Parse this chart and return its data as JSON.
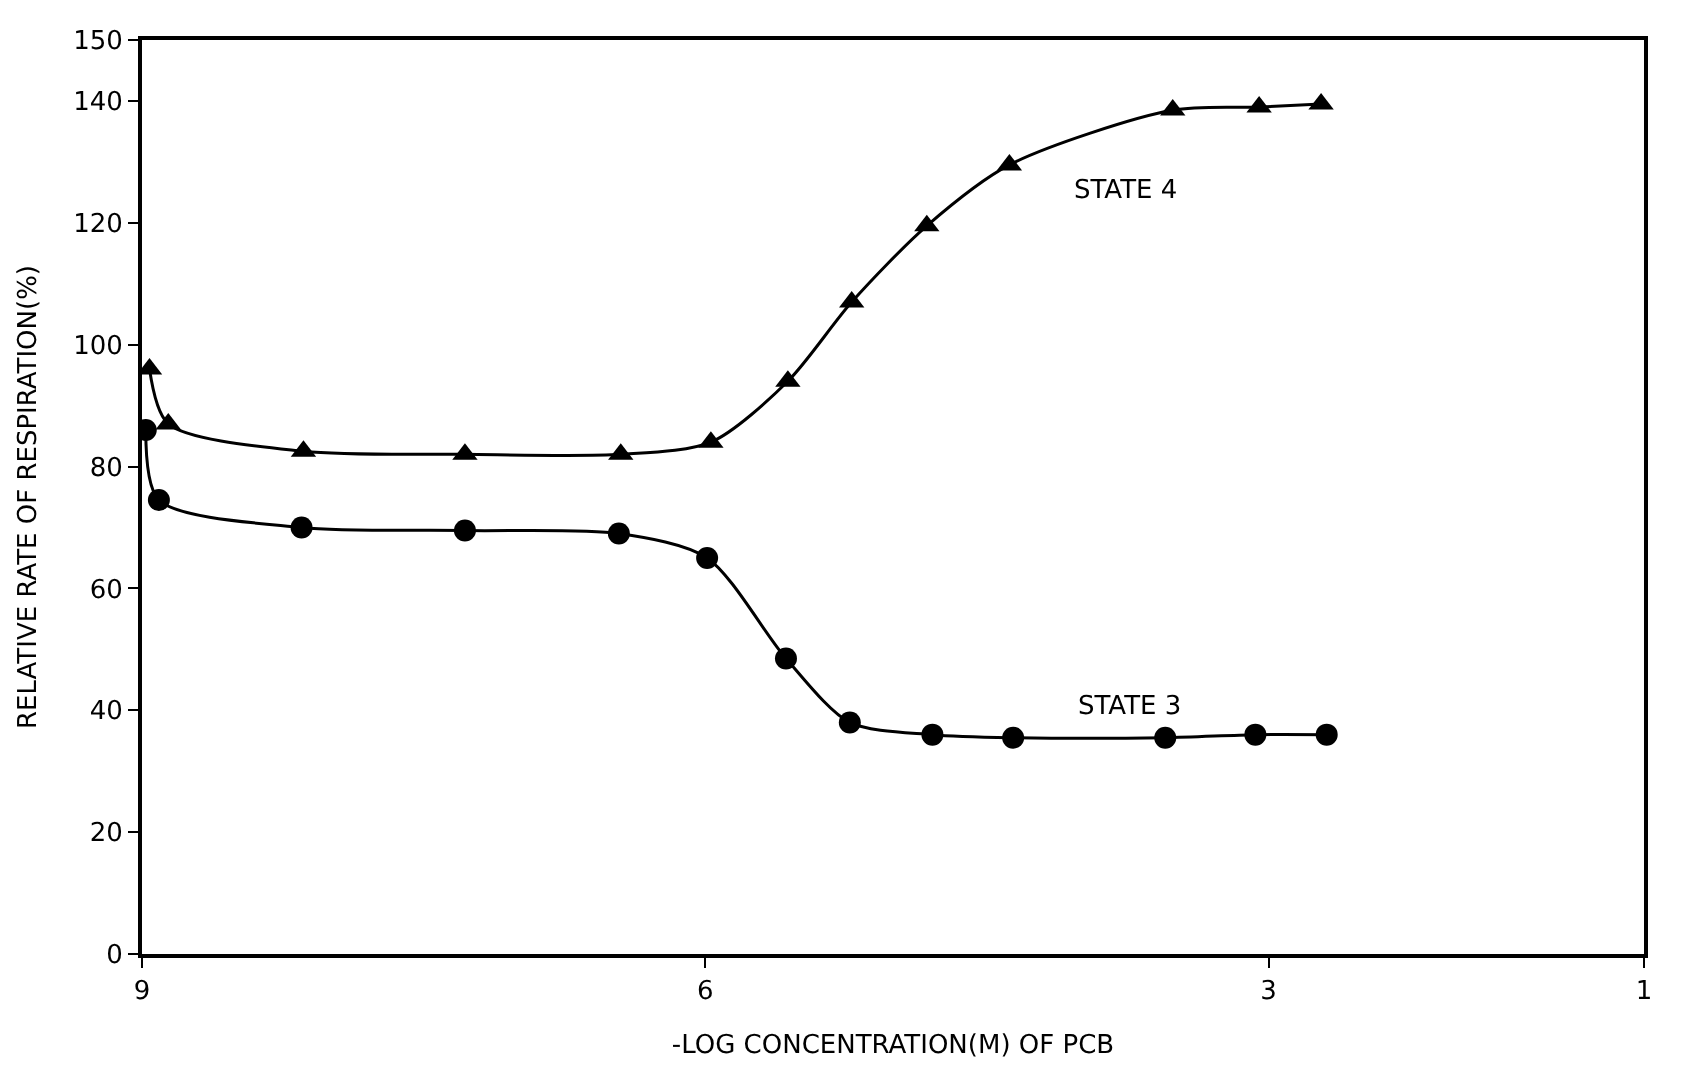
{
  "chart_data": {
    "type": "line",
    "xlabel": "-LOG CONCENTRATION(M) OF PCB",
    "ylabel": "RELATIVE RATE OF RESPIRATION(%)",
    "xlim": [
      9,
      1
    ],
    "xticks": [
      9,
      6,
      3,
      1
    ],
    "ylim": [
      0,
      150
    ],
    "yticks": [
      0,
      20,
      40,
      60,
      80,
      100,
      120,
      140,
      150
    ],
    "legend": false,
    "series": [
      {
        "name": "STATE 4",
        "color": "#000000",
        "marker": "triangle",
        "x": [
          8.96,
          8.86,
          8.14,
          7.28,
          6.45,
          5.97,
          5.56,
          5.22,
          4.82,
          4.38,
          3.51,
          3.05,
          2.72
        ],
        "values": [
          96,
          87,
          82.5,
          82,
          82,
          84,
          94,
          107,
          119.5,
          129.5,
          138.5,
          139,
          139.5
        ]
      },
      {
        "name": "STATE 3",
        "color": "#000000",
        "marker": "circle",
        "x": [
          8.98,
          8.91,
          8.15,
          7.28,
          6.46,
          5.99,
          5.57,
          5.23,
          4.79,
          4.36,
          3.55,
          3.07,
          2.69
        ],
        "values": [
          86,
          74.5,
          70,
          69.5,
          69,
          65,
          48.5,
          38,
          36,
          35.5,
          35.5,
          36,
          36
        ]
      }
    ]
  }
}
